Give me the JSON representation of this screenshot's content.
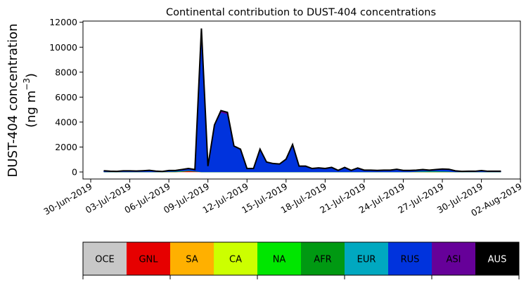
{
  "chart_data": {
    "type": "area",
    "stacked": true,
    "title": "Continental contribution to DUST-404 concentrations",
    "ylabel_line1": "DUST-404 concentration",
    "ylabel_line2": "(ng m",
    "ylabel_sup": "−3",
    "ylabel_close": ")",
    "xlabel": "",
    "ylim": [
      0,
      12000
    ],
    "yticks": [
      "0",
      "2000",
      "4000",
      "6000",
      "8000",
      "10000",
      "12000"
    ],
    "ytick_values": [
      0,
      2000,
      4000,
      6000,
      8000,
      10000,
      12000
    ],
    "xticks": [
      "30-Jun-2019",
      "03-Jul-2019",
      "06-Jul-2019",
      "09-Jul-2019",
      "12-Jul-2019",
      "15-Jul-2019",
      "18-Jul-2019",
      "21-Jul-2019",
      "24-Jul-2019",
      "27-Jul-2019",
      "30-Jul-2019",
      "02-Aug-2019"
    ],
    "xtick_day_offsets": [
      0,
      3,
      6,
      9,
      12,
      15,
      18,
      21,
      24,
      27,
      30,
      33
    ],
    "x_start": "01-Jul-2019 00:00",
    "x_step_hours": 12,
    "x_start_day_offset": 1,
    "legend_order": [
      "OCE",
      "GNL",
      "SA",
      "CA",
      "NA",
      "AFR",
      "EUR",
      "RUS",
      "ASI",
      "AUS"
    ],
    "colors": {
      "OCE": "#c8c8c8",
      "GNL": "#e60000",
      "SA": "#ffb000",
      "CA": "#ccff00",
      "NA": "#00e600",
      "AFR": "#009912",
      "EUR": "#00a8c0",
      "RUS": "#0033dd",
      "ASI": "#660099",
      "AUS": "#000000"
    },
    "series": [
      {
        "name": "GNL",
        "values": [
          0,
          0,
          0,
          0,
          0,
          0,
          0,
          0,
          0,
          0,
          0,
          0,
          30,
          80,
          40,
          0,
          0,
          0,
          0,
          0,
          0,
          0,
          0,
          0,
          0,
          0,
          0,
          0,
          0,
          0,
          0,
          0,
          0,
          0,
          0,
          0,
          0,
          0,
          0,
          0,
          0,
          0,
          0,
          0,
          0,
          0,
          0,
          0,
          0,
          0,
          0,
          0,
          0,
          0,
          0,
          0,
          0,
          0,
          0,
          0,
          0,
          0
        ]
      },
      {
        "name": "NA",
        "values": [
          0,
          0,
          0,
          0,
          0,
          0,
          0,
          0,
          0,
          0,
          20,
          30,
          40,
          30,
          20,
          0,
          0,
          0,
          0,
          0,
          0,
          0,
          0,
          0,
          0,
          0,
          0,
          0,
          0,
          0,
          0,
          0,
          0,
          0,
          0,
          0,
          0,
          0,
          0,
          0,
          0,
          0,
          0,
          0,
          0,
          0,
          0,
          0,
          30,
          40,
          50,
          50,
          40,
          30,
          0,
          0,
          0,
          0,
          0,
          0,
          0,
          0
        ]
      },
      {
        "name": "RUS",
        "values": [
          100,
          60,
          50,
          90,
          90,
          80,
          100,
          130,
          70,
          40,
          100,
          90,
          130,
          170,
          140,
          11300,
          470,
          3710,
          4770,
          4630,
          2080,
          1830,
          280,
          280,
          1830,
          800,
          680,
          640,
          1030,
          2200,
          470,
          470,
          280,
          330,
          280,
          370,
          130,
          370,
          130,
          320,
          150,
          150,
          130,
          150,
          150,
          220,
          130,
          130,
          120,
          160,
          100,
          150,
          200,
          190,
          90,
          50,
          60,
          60,
          110,
          60,
          60,
          60
        ]
      },
      {
        "name": "ASI",
        "values": [
          0,
          0,
          0,
          0,
          0,
          0,
          0,
          0,
          0,
          0,
          0,
          0,
          0,
          0,
          0,
          200,
          0,
          60,
          150,
          150,
          0,
          0,
          0,
          0,
          0,
          0,
          0,
          0,
          0,
          0,
          0,
          0,
          0,
          0,
          0,
          0,
          0,
          0,
          0,
          0,
          0,
          0,
          0,
          0,
          0,
          0,
          0,
          0,
          0,
          0,
          0,
          0,
          0,
          0,
          0,
          0,
          0,
          0,
          0,
          0,
          0,
          0
        ]
      }
    ]
  }
}
